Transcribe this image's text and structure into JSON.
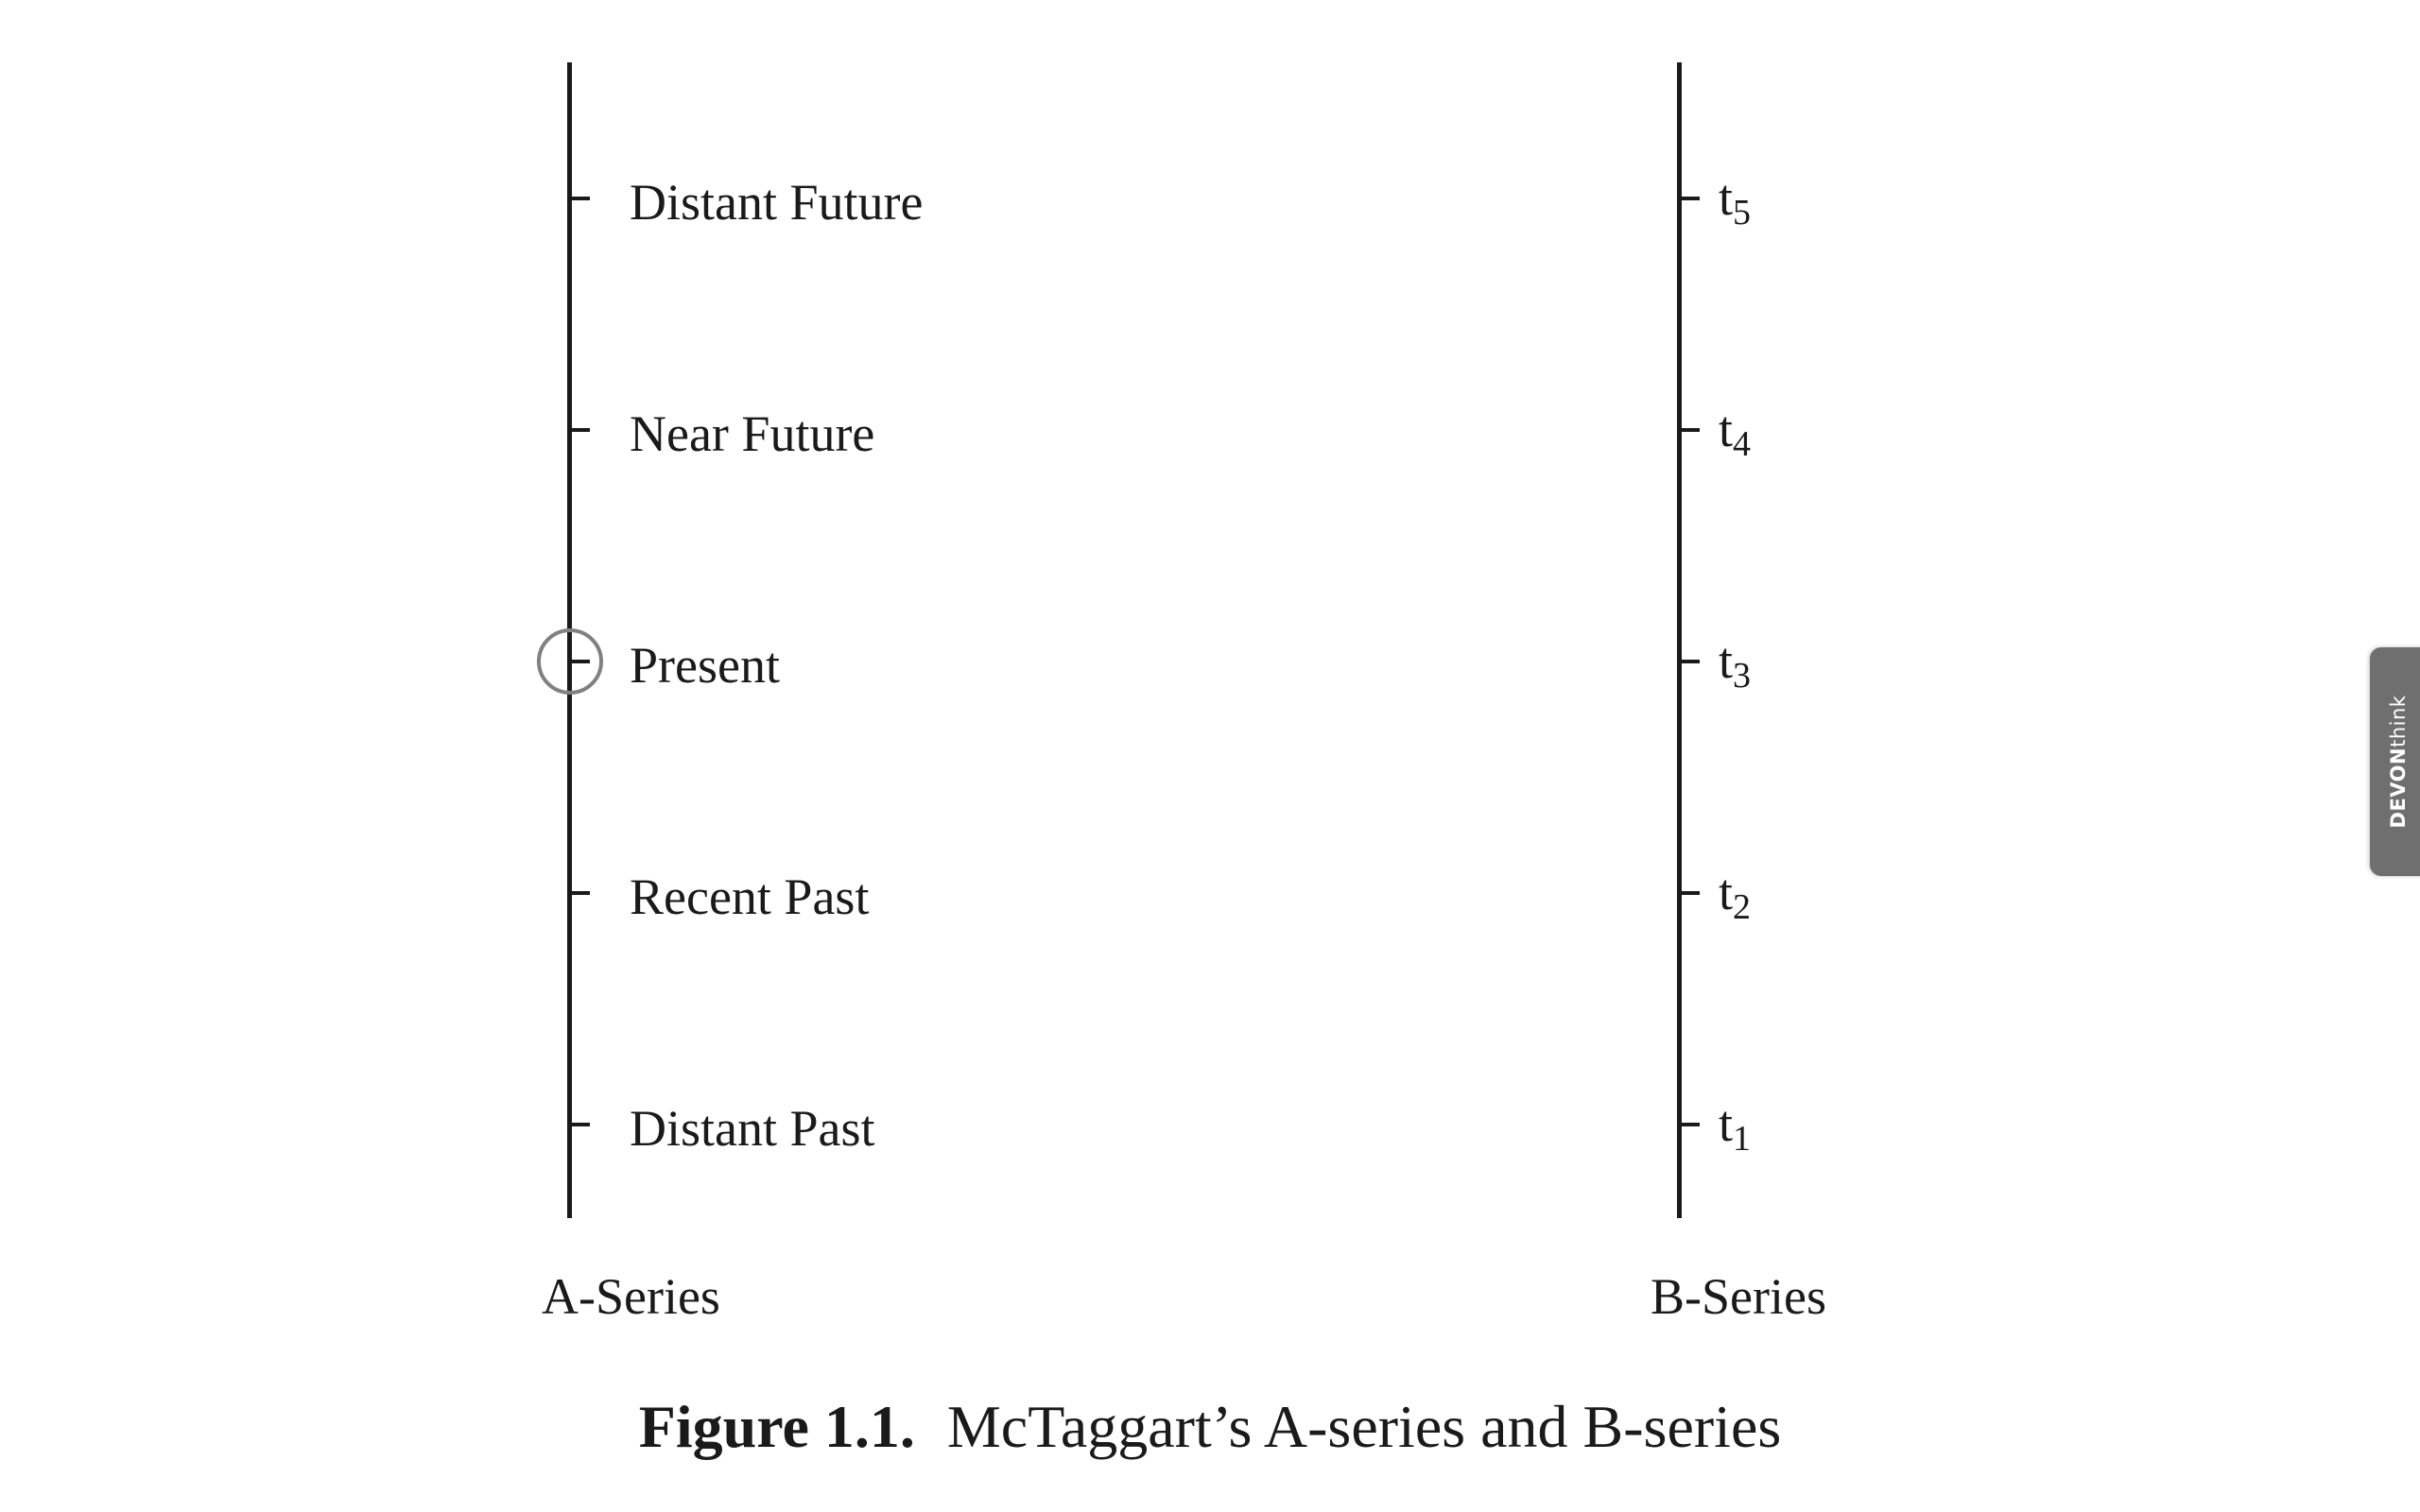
{
  "a_series": {
    "label": "A-Series",
    "ticks": [
      {
        "label": "Distant Future"
      },
      {
        "label": "Near Future"
      },
      {
        "label": "Present",
        "highlighted": true
      },
      {
        "label": "Recent Past"
      },
      {
        "label": "Distant Past"
      }
    ]
  },
  "b_series": {
    "label": "B-Series",
    "ticks": [
      {
        "base": "t",
        "sub": "5"
      },
      {
        "base": "t",
        "sub": "4"
      },
      {
        "base": "t",
        "sub": "3"
      },
      {
        "base": "t",
        "sub": "2"
      },
      {
        "base": "t",
        "sub": "1"
      }
    ]
  },
  "caption": {
    "number": "Figure 1.1.",
    "text": "McTaggart’s A-series and B-series"
  },
  "devonthink_tab": {
    "part1": "DEVON",
    "part2": "think"
  }
}
